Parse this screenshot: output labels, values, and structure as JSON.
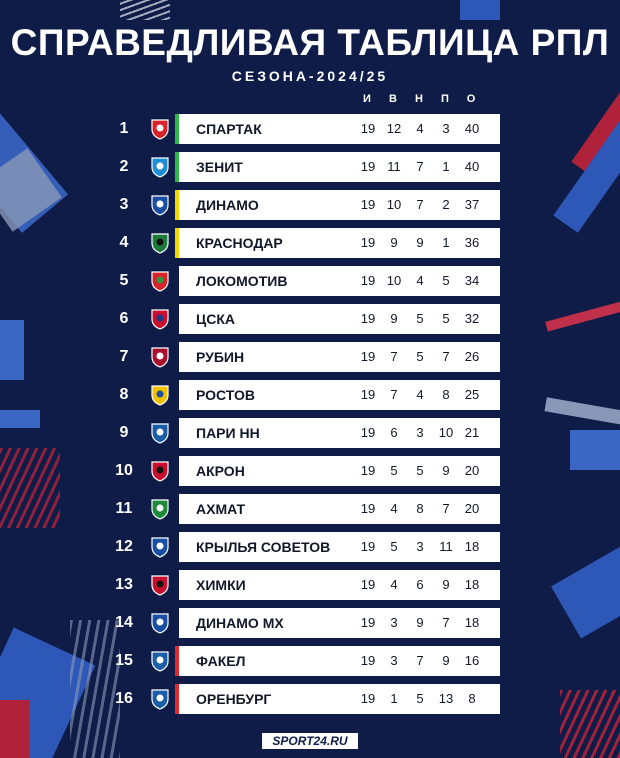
{
  "header": {
    "title": "СПРАВЕДЛИВАЯ ТАБЛИЦА РПЛ",
    "subtitle": "СЕЗОНА-2024/25"
  },
  "columns": [
    "И",
    "В",
    "Н",
    "П",
    "О"
  ],
  "zone_colors": {
    "cl": "#2db84a",
    "uefa": "#f5d400",
    "relegation": "#e22a2a",
    "none": "transparent"
  },
  "teams": [
    {
      "pos": "1",
      "name": "СПАРТАК",
      "stats": [
        "19",
        "12",
        "4",
        "3",
        "40"
      ],
      "zone": "cl",
      "logo": "spartak-logo-icon"
    },
    {
      "pos": "2",
      "name": "ЗЕНИТ",
      "stats": [
        "19",
        "11",
        "7",
        "1",
        "40"
      ],
      "zone": "cl",
      "logo": "zenit-logo-icon"
    },
    {
      "pos": "3",
      "name": "ДИНАМО",
      "stats": [
        "19",
        "10",
        "7",
        "2",
        "37"
      ],
      "zone": "uefa",
      "logo": "dinamo-logo-icon"
    },
    {
      "pos": "4",
      "name": "КРАСНОДАР",
      "stats": [
        "19",
        "9",
        "9",
        "1",
        "36"
      ],
      "zone": "uefa",
      "logo": "krasnodar-logo-icon"
    },
    {
      "pos": "5",
      "name": "ЛОКОМОТИВ",
      "stats": [
        "19",
        "10",
        "4",
        "5",
        "34"
      ],
      "zone": "none",
      "logo": "lokomotiv-logo-icon"
    },
    {
      "pos": "6",
      "name": "ЦСКА",
      "stats": [
        "19",
        "9",
        "5",
        "5",
        "32"
      ],
      "zone": "none",
      "logo": "cska-logo-icon"
    },
    {
      "pos": "7",
      "name": "РУБИН",
      "stats": [
        "19",
        "7",
        "5",
        "7",
        "26"
      ],
      "zone": "none",
      "logo": "rubin-logo-icon"
    },
    {
      "pos": "8",
      "name": "РОСТОВ",
      "stats": [
        "19",
        "7",
        "4",
        "8",
        "25"
      ],
      "zone": "none",
      "logo": "rostov-logo-icon"
    },
    {
      "pos": "9",
      "name": "ПАРИ НН",
      "stats": [
        "19",
        "6",
        "3",
        "10",
        "21"
      ],
      "zone": "none",
      "logo": "pari-nn-logo-icon"
    },
    {
      "pos": "10",
      "name": "АКРОН",
      "stats": [
        "19",
        "5",
        "5",
        "9",
        "20"
      ],
      "zone": "none",
      "logo": "akron-logo-icon"
    },
    {
      "pos": "11",
      "name": "АХМАТ",
      "stats": [
        "19",
        "4",
        "8",
        "7",
        "20"
      ],
      "zone": "none",
      "logo": "akhmat-logo-icon"
    },
    {
      "pos": "12",
      "name": "КРЫЛЬЯ СОВЕТОВ",
      "stats": [
        "19",
        "5",
        "3",
        "11",
        "18"
      ],
      "zone": "none",
      "logo": "krylia-sovetov-logo-icon"
    },
    {
      "pos": "13",
      "name": "ХИМКИ",
      "stats": [
        "19",
        "4",
        "6",
        "9",
        "18"
      ],
      "zone": "none",
      "logo": "khimki-logo-icon"
    },
    {
      "pos": "14",
      "name": "ДИНАМО МХ",
      "stats": [
        "19",
        "3",
        "9",
        "7",
        "18"
      ],
      "zone": "none",
      "logo": "dinamo-mkh-logo-icon"
    },
    {
      "pos": "15",
      "name": "ФАКЕЛ",
      "stats": [
        "19",
        "3",
        "7",
        "9",
        "16"
      ],
      "zone": "relegation",
      "logo": "fakel-logo-icon"
    },
    {
      "pos": "16",
      "name": "ОРЕНБУРГ",
      "stats": [
        "19",
        "1",
        "5",
        "13",
        "8"
      ],
      "zone": "relegation",
      "logo": "orenburg-logo-icon"
    }
  ],
  "footer": {
    "brand": "SPORT24.RU"
  }
}
